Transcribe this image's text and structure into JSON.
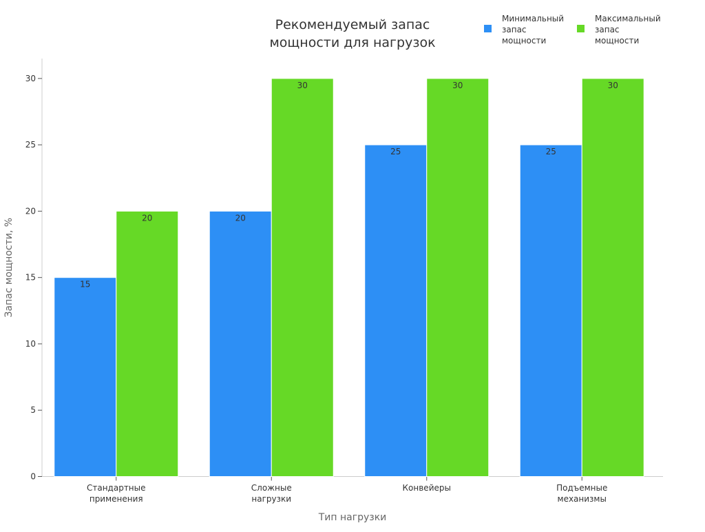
{
  "chart_data": {
    "type": "bar",
    "title_lines": [
      "Рекомендуемый запас",
      "мощности для нагрузок"
    ],
    "xlabel": "Тип нагрузки",
    "ylabel": "Запас мощности, %",
    "categories": [
      [
        "Стандартные",
        "применения"
      ],
      [
        "Сложные",
        "нагрузки"
      ],
      [
        "Конвейеры"
      ],
      [
        "Подъемные",
        "механизмы"
      ]
    ],
    "series": [
      {
        "name_lines": [
          "Минимальный",
          "запас",
          "мощности"
        ],
        "color": "#2d8ff5",
        "values": [
          15,
          20,
          25,
          25
        ]
      },
      {
        "name_lines": [
          "Максимальный",
          "запас",
          "мощности"
        ],
        "color": "#66d926",
        "values": [
          20,
          30,
          30,
          30
        ]
      }
    ],
    "ylim": [
      0,
      31.5
    ],
    "yticks": [
      0,
      5,
      10,
      15,
      20,
      25,
      30
    ],
    "grid": false,
    "legend_position": "top-right",
    "data_labels": true
  }
}
